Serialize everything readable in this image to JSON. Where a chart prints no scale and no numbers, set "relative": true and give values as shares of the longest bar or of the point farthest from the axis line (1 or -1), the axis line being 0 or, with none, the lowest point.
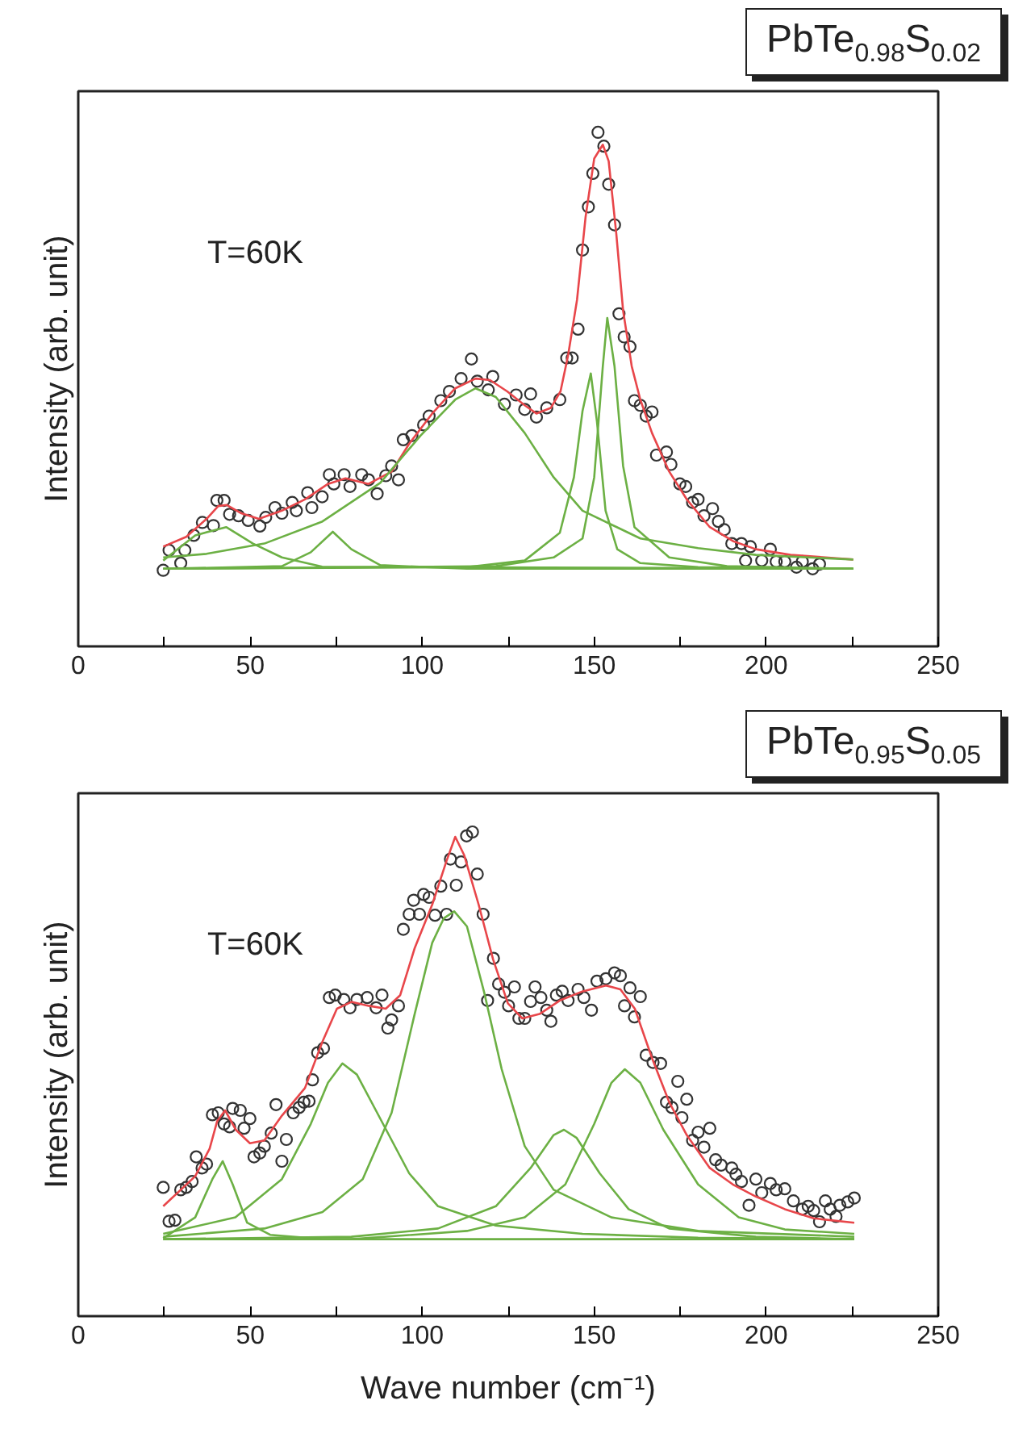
{
  "chart_data": [
    {
      "type": "scatter",
      "title": "PbTe$_{0.98}$S$_{0.02}$",
      "ylabel": "Intensity (arb. unit)",
      "annotations": [
        "T=60K"
      ],
      "relative": true,
      "tick_labels": "x",
      "grid": false,
      "xlim": [
        0,
        250
      ],
      "xticks": [
        0,
        {
          "value": 25,
          "label": null
        },
        50,
        {
          "value": 75,
          "label": null
        },
        100,
        {
          "value": 125,
          "label": null
        },
        150,
        {
          "value": 175,
          "label": null
        },
        200,
        {
          "value": 225,
          "label": null
        },
        250
      ],
      "series": [
        {
          "marker": "circle",
          "color": "#333333",
          "x": [
            24.7,
            26.4,
            29.8,
            31,
            33.6,
            36.1,
            39.3,
            40.3,
            42.4,
            44,
            46.6,
            49.4,
            52.8,
            54.5,
            57.2,
            59.2,
            62.2,
            63.4,
            66.7,
            67.9,
            70.9,
            73,
            74.3,
            77.3,
            79,
            82.4,
            84.4,
            86.9,
            89.4,
            91.1,
            93.1,
            94.5,
            97,
            100.4,
            102,
            105.4,
            107.9,
            111.3,
            114.3,
            116,
            119.2,
            120.5,
            123.9,
            127.3,
            129.8,
            131.5,
            133.2,
            136.2,
            140,
            142,
            143.6,
            145.3,
            146.6,
            148.3,
            149.6,
            151.1,
            152.8,
            154.2,
            155.9,
            157.2,
            158.7,
            160.4,
            161.7,
            163.4,
            165.1,
            166.8,
            168.1,
            171,
            172.3,
            174.9,
            176.6,
            178.6,
            180.2,
            181.9,
            184.4,
            186.1,
            187.8,
            190,
            192.8,
            194,
            195.4,
            198.7,
            201.2,
            202.9,
            205.4,
            208.8,
            210.5,
            213.5,
            215.5
          ],
          "values": [
            0.148,
            0.187,
            0.162,
            0.187,
            0.216,
            0.241,
            0.235,
            0.284,
            0.284,
            0.257,
            0.254,
            0.245,
            0.234,
            0.251,
            0.27,
            0.259,
            0.28,
            0.264,
            0.299,
            0.27,
            0.291,
            0.334,
            0.316,
            0.334,
            0.311,
            0.334,
            0.324,
            0.297,
            0.332,
            0.351,
            0.324,
            0.402,
            0.41,
            0.431,
            0.448,
            0.478,
            0.496,
            0.521,
            0.559,
            0.516,
            0.499,
            0.525,
            0.471,
            0.489,
            0.461,
            0.491,
            0.446,
            0.464,
            0.48,
            0.561,
            0.561,
            0.617,
            0.771,
            0.855,
            0.92,
            1.0,
            0.973,
            0.899,
            0.82,
            0.647,
            0.602,
            0.583,
            0.478,
            0.469,
            0.448,
            0.456,
            0.372,
            0.378,
            0.354,
            0.316,
            0.311,
            0.28,
            0.286,
            0.254,
            0.268,
            0.243,
            0.227,
            0.2,
            0.2,
            0.167,
            0.194,
            0.167,
            0.189,
            0.165,
            0.165,
            0.154,
            0.165,
            0.151,
            0.16
          ]
        },
        {
          "type": "line",
          "color": "#e8464a",
          "x": [
            24.7,
            31.4,
            37.3,
            40.7,
            43.2,
            47.4,
            52.5,
            59.2,
            65.9,
            72.6,
            77.7,
            84.4,
            91.1,
            96.2,
            102.9,
            109.6,
            115.5,
            119.7,
            124.7,
            129.8,
            133.2,
            137.4,
            140.2,
            142.4,
            145,
            147.5,
            150,
            152.5,
            154.2,
            156.4,
            158.4,
            160.9,
            163.4,
            166.8,
            171.8,
            176.9,
            183.6,
            190.3,
            197,
            207.1,
            217.2,
            225.3
          ],
          "values": [
            0.194,
            0.213,
            0.248,
            0.273,
            0.275,
            0.259,
            0.248,
            0.264,
            0.286,
            0.316,
            0.327,
            0.316,
            0.34,
            0.394,
            0.453,
            0.502,
            0.521,
            0.518,
            0.496,
            0.469,
            0.453,
            0.464,
            0.496,
            0.566,
            0.674,
            0.836,
            0.949,
            0.976,
            0.944,
            0.804,
            0.653,
            0.545,
            0.48,
            0.415,
            0.34,
            0.286,
            0.232,
            0.205,
            0.189,
            0.178,
            0.173,
            0.169
          ]
        },
        {
          "type": "line",
          "color": "#6cb044",
          "x": [
            24.7,
            34,
            43,
            50.8,
            59.2,
            70.9,
            225.3
          ],
          "values": [
            0.167,
            0.216,
            0.232,
            0.2,
            0.173,
            0.155,
            0.151
          ]
        },
        {
          "type": "line",
          "color": "#6cb044",
          "x": [
            24.7,
            59.2,
            67.6,
            74,
            79.4,
            87.8,
            113,
            225.3
          ],
          "values": [
            0.151,
            0.156,
            0.183,
            0.223,
            0.189,
            0.158,
            0.151,
            0.151
          ]
        },
        {
          "type": "line",
          "color": "#6cb044",
          "x": [
            24.7,
            37.3,
            54.1,
            71,
            87.8,
            99.5,
            109.6,
            115.5,
            121.4,
            129.8,
            138.2,
            146.6,
            163.4,
            180.2,
            197,
            225.3
          ],
          "values": [
            0.173,
            0.18,
            0.2,
            0.243,
            0.318,
            0.41,
            0.48,
            0.502,
            0.485,
            0.415,
            0.329,
            0.264,
            0.21,
            0.191,
            0.178,
            0.169
          ]
        },
        {
          "type": "line",
          "color": "#6cb044",
          "x": [
            24.7,
            113,
            129.8,
            140,
            144.1,
            146.6,
            149,
            150.8,
            153.3,
            156.7,
            163.4,
            180.2,
            225.3
          ],
          "values": [
            0.151,
            0.154,
            0.167,
            0.221,
            0.329,
            0.458,
            0.531,
            0.437,
            0.264,
            0.189,
            0.162,
            0.154,
            0.151
          ]
        },
        {
          "type": "line",
          "color": "#6cb044",
          "x": [
            24.7,
            121.4,
            138.2,
            146.6,
            150,
            152.5,
            153.8,
            155.9,
            158.4,
            161.7,
            171.8,
            188.6,
            225.3
          ],
          "values": [
            0.151,
            0.156,
            0.173,
            0.21,
            0.329,
            0.545,
            0.639,
            0.545,
            0.351,
            0.232,
            0.173,
            0.156,
            0.151
          ]
        }
      ]
    },
    {
      "type": "scatter",
      "title": "PbTe$_{0.95}$S$_{0.05}$",
      "xlabel": "Wave number (cm⁻¹)",
      "ylabel": "Intensity (arb. unit)",
      "annotations": [
        "T=60K"
      ],
      "relative": true,
      "tick_labels": "x",
      "grid": false,
      "xlim": [
        0,
        250
      ],
      "xticks": [
        0,
        {
          "value": 25,
          "label": null
        },
        50,
        {
          "value": 75,
          "label": null
        },
        100,
        {
          "value": 125,
          "label": null
        },
        150,
        {
          "value": 175,
          "label": null
        },
        200,
        {
          "value": 225,
          "label": null
        },
        250
      ],
      "series": [
        {
          "marker": "circle",
          "color": "#333333",
          "x": [
            24.7,
            26.4,
            28.1,
            29.8,
            31.4,
            33.1,
            34.3,
            36,
            37.3,
            39,
            40.7,
            42.4,
            44,
            44.9,
            47.1,
            48.2,
            49.9,
            51.1,
            52.8,
            54.1,
            56.1,
            57.5,
            59.2,
            60.5,
            62.5,
            64.2,
            65.6,
            67.1,
            68.1,
            69.6,
            71.3,
            73,
            74.7,
            77.2,
            79,
            81,
            84,
            86.6,
            88.3,
            90,
            91.1,
            93.1,
            94.5,
            96.2,
            97.5,
            99.2,
            100.4,
            102,
            103.7,
            105.4,
            107.1,
            108.2,
            109.9,
            111.3,
            112.9,
            114.6,
            116,
            117.7,
            119,
            120.7,
            122.2,
            123.9,
            125.1,
            126.8,
            128.1,
            129.8,
            131.5,
            132.8,
            134.5,
            136.2,
            137.4,
            139,
            140.7,
            142.4,
            145.3,
            147,
            149.2,
            150.8,
            153.4,
            155.9,
            157.6,
            158.8,
            160.4,
            161.7,
            163.4,
            165.1,
            167.1,
            169.3,
            171,
            172.6,
            174.3,
            175.5,
            176.9,
            178.6,
            180.2,
            181.9,
            183.6,
            185.3,
            186.9,
            190,
            191.2,
            192.8,
            195,
            197,
            198.7,
            201.2,
            202.9,
            205.4,
            207.9,
            210.5,
            212.2,
            213.8,
            215.5,
            217.2,
            218.6,
            220.3,
            221.4,
            223.7,
            225.6
          ],
          "values": [
            0.266,
            0.196,
            0.198,
            0.261,
            0.266,
            0.278,
            0.329,
            0.306,
            0.314,
            0.416,
            0.42,
            0.397,
            0.391,
            0.429,
            0.425,
            0.388,
            0.408,
            0.329,
            0.337,
            0.351,
            0.378,
            0.437,
            0.32,
            0.365,
            0.42,
            0.431,
            0.442,
            0.444,
            0.488,
            0.544,
            0.553,
            0.658,
            0.663,
            0.654,
            0.637,
            0.654,
            0.658,
            0.637,
            0.663,
            0.595,
            0.612,
            0.641,
            0.799,
            0.83,
            0.859,
            0.83,
            0.871,
            0.865,
            0.828,
            0.888,
            0.83,
            0.944,
            0.89,
            0.938,
            0.992,
            1.0,
            0.913,
            0.83,
            0.652,
            0.739,
            0.686,
            0.669,
            0.641,
            0.68,
            0.615,
            0.615,
            0.65,
            0.68,
            0.658,
            0.632,
            0.609,
            0.663,
            0.671,
            0.652,
            0.675,
            0.658,
            0.632,
            0.692,
            0.697,
            0.709,
            0.703,
            0.641,
            0.678,
            0.618,
            0.66,
            0.539,
            0.524,
            0.522,
            0.442,
            0.431,
            0.485,
            0.41,
            0.448,
            0.363,
            0.38,
            0.349,
            0.388,
            0.323,
            0.312,
            0.306,
            0.293,
            0.278,
            0.229,
            0.283,
            0.255,
            0.274,
            0.261,
            0.263,
            0.238,
            0.221,
            0.227,
            0.218,
            0.195,
            0.238,
            0.221,
            0.206,
            0.229,
            0.236,
            0.244
          ]
        },
        {
          "type": "line",
          "color": "#e8464a",
          "x": [
            24.7,
            34,
            38.2,
            40.4,
            42.7,
            45.8,
            49.9,
            54.1,
            59.2,
            65.9,
            71,
            75.2,
            79.4,
            84.4,
            89.4,
            93.6,
            97.8,
            102.9,
            107.1,
            109.6,
            112.2,
            116.4,
            120.6,
            124.9,
            129.1,
            134.1,
            140,
            146.7,
            153.4,
            157.6,
            161.8,
            166.8,
            171.8,
            176.9,
            183.6,
            190.3,
            197,
            205.4,
            213.8,
            225.6
          ],
          "values": [
            0.227,
            0.289,
            0.346,
            0.403,
            0.425,
            0.385,
            0.357,
            0.363,
            0.414,
            0.471,
            0.567,
            0.635,
            0.649,
            0.641,
            0.635,
            0.663,
            0.76,
            0.85,
            0.941,
            0.99,
            0.952,
            0.85,
            0.737,
            0.646,
            0.615,
            0.624,
            0.652,
            0.671,
            0.683,
            0.675,
            0.635,
            0.533,
            0.442,
            0.374,
            0.306,
            0.272,
            0.247,
            0.221,
            0.202,
            0.193
          ]
        },
        {
          "type": "line",
          "color": "#6cb044",
          "x": [
            24.7,
            34,
            39,
            42,
            44.9,
            49.1,
            55.8,
            71,
            225.6
          ],
          "values": [
            0.161,
            0.204,
            0.283,
            0.32,
            0.272,
            0.193,
            0.168,
            0.159,
            0.159
          ]
        },
        {
          "type": "line",
          "color": "#6cb044",
          "x": [
            24.7,
            45.7,
            59.2,
            67.6,
            72.6,
            76.8,
            81,
            86.9,
            96.2,
            104.6,
            121.4,
            146.6,
            180.2,
            225.6
          ],
          "values": [
            0.17,
            0.204,
            0.283,
            0.397,
            0.482,
            0.522,
            0.499,
            0.42,
            0.295,
            0.227,
            0.187,
            0.17,
            0.162,
            0.159
          ]
        },
        {
          "type": "line",
          "color": "#6cb044",
          "x": [
            24.7,
            54.1,
            71,
            82.7,
            91.1,
            97.8,
            102.9,
            106.3,
            109.3,
            113,
            118,
            123.1,
            129.8,
            138.2,
            155,
            180.2,
            225.6
          ],
          "values": [
            0.164,
            0.181,
            0.215,
            0.283,
            0.42,
            0.624,
            0.771,
            0.822,
            0.836,
            0.805,
            0.669,
            0.51,
            0.351,
            0.261,
            0.204,
            0.176,
            0.164
          ]
        },
        {
          "type": "line",
          "color": "#6cb044",
          "x": [
            24.7,
            79.4,
            104.6,
            121.4,
            131.5,
            138.2,
            141.2,
            144.9,
            151.6,
            160,
            171.8,
            197,
            225.6
          ],
          "values": [
            0.159,
            0.164,
            0.181,
            0.227,
            0.306,
            0.374,
            0.385,
            0.368,
            0.295,
            0.221,
            0.181,
            0.164,
            0.159
          ]
        },
        {
          "type": "line",
          "color": "#6cb044",
          "x": [
            24.7,
            79.4,
            113,
            129.8,
            141.6,
            150,
            155,
            158.9,
            163.4,
            170.1,
            180.2,
            192,
            205.4,
            225.6
          ],
          "values": [
            0.159,
            0.159,
            0.176,
            0.204,
            0.272,
            0.397,
            0.482,
            0.51,
            0.482,
            0.385,
            0.272,
            0.204,
            0.179,
            0.17
          ]
        }
      ]
    }
  ]
}
